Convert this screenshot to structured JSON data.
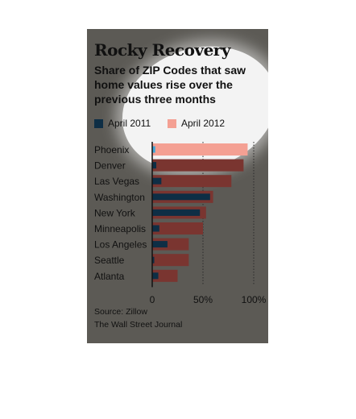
{
  "header": {
    "title": "Rocky Recovery",
    "subtitle": "Share of ZIP Codes that saw home values rise over the previous three months"
  },
  "legend": [
    {
      "label": "April 2011",
      "color": "#0e2e45"
    },
    {
      "label": "April 2012",
      "color": "#f4a093"
    }
  ],
  "footer": {
    "source": "Source: Zillow",
    "publisher": "The Wall Street Journal"
  },
  "colors": {
    "panel": "#5c5a55",
    "bar_2012": "#7a3530",
    "bar_2012_highlighted": "#f4a093",
    "bar_2011": "#0e2e45",
    "bar_2011_highlighted": "#3ea7d8",
    "text": "#111111"
  },
  "chart_data": {
    "type": "bar",
    "orientation": "horizontal",
    "categories": [
      "Phoenix",
      "Denver",
      "Las Vegas",
      "Washington",
      "New York",
      "Minneapolis",
      "Los Angeles",
      "Seattle",
      "Atlanta"
    ],
    "series": [
      {
        "name": "April 2011",
        "values": [
          3,
          4,
          9,
          57,
          47,
          7,
          15,
          2,
          6
        ]
      },
      {
        "name": "April 2012",
        "values": [
          94,
          90,
          78,
          60,
          53,
          50,
          36,
          36,
          25
        ]
      }
    ],
    "highlighted_category": "Phoenix",
    "xlim": [
      0,
      100
    ],
    "xticks": [
      {
        "value": 0,
        "label": "0"
      },
      {
        "value": 50,
        "label": "50%"
      },
      {
        "value": 100,
        "label": "100%"
      }
    ],
    "gridlines": [
      50,
      100
    ],
    "grid_style": "dotted"
  }
}
